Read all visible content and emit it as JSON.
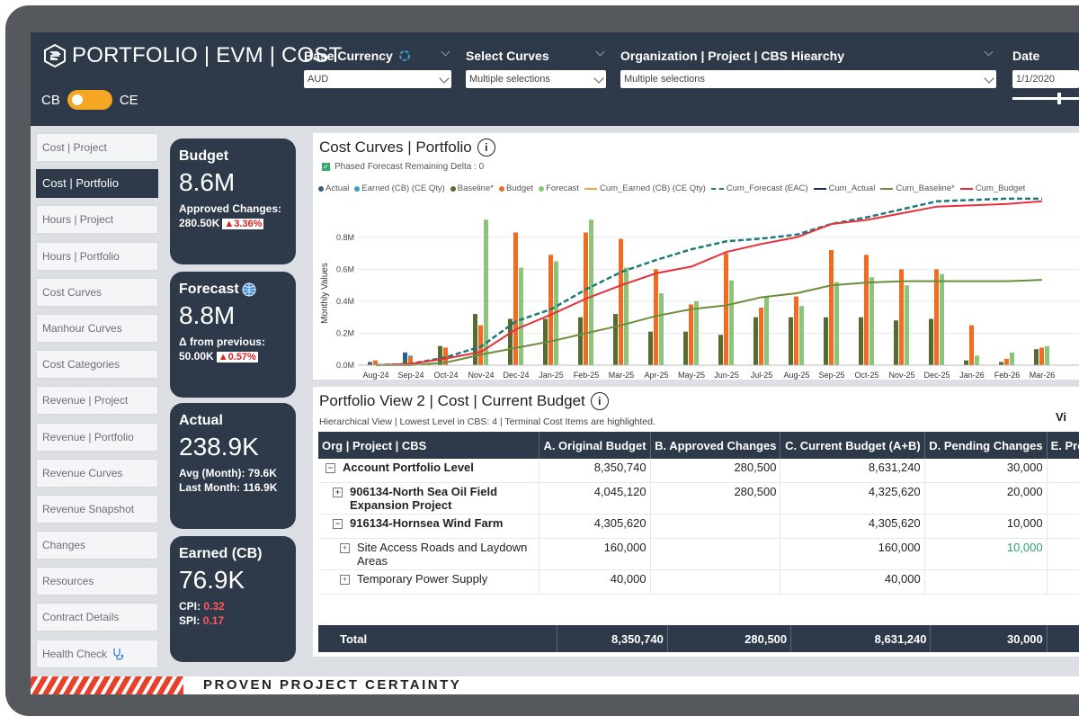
{
  "app": {
    "title": "PORTFOLIO | EVM | COST",
    "toggle_left": "CB",
    "toggle_right": "CE",
    "tagline": "PROVEN PROJECT CERTAINTY"
  },
  "filters": {
    "currency": {
      "label": "Base Currency",
      "value": "AUD"
    },
    "curves": {
      "label": "Select Curves",
      "value": "Multiple selections"
    },
    "org": {
      "label": "Organization | Project | CBS Hiearchy",
      "value": "Multiple selections"
    },
    "date": {
      "label": "Date",
      "value": "1/1/2020"
    }
  },
  "nav": [
    "Cost | Project",
    "Cost | Portfolio",
    "Hours | Project",
    "Hours | Portfolio",
    "Cost Curves",
    "Manhour Curves",
    "Cost Categories",
    "Revenue | Project",
    "Revenue | Portfolio",
    "Revenue Curves",
    "Revenue Snapshot",
    "Changes",
    "Resources",
    "Contract Details",
    "Health Check"
  ],
  "nav_active": "Cost | Portfolio",
  "cards": {
    "budget": {
      "title": "Budget",
      "value": "8.6M",
      "sub_label": "Approved Changes:",
      "sub_value": "280.50K",
      "delta": "▲3.36%"
    },
    "forecast": {
      "title": "Forecast",
      "value": "8.8M",
      "sub_label": "Δ from previous:",
      "sub_value": "50.00K",
      "delta": "▲0.57%"
    },
    "actual": {
      "title": "Actual",
      "value": "238.9K",
      "line1": "Avg (Month): 79.6K",
      "line2": "Last Month: 116.9K"
    },
    "earned": {
      "title": "Earned (CB)",
      "value": "76.9K",
      "cpi_label": "CPI:",
      "cpi": "0.32",
      "spi_label": "SPI:",
      "spi": "0.17"
    }
  },
  "colors": {
    "actual": "#2e5f8a",
    "earned": "#3aa0c8",
    "baseline": "#556b2f",
    "budget": "#f26b21",
    "forecast": "#8cc47a",
    "cum_budget": "#e8303a",
    "cum_forecast": "#1f7a7a",
    "cum_baseline": "#6b8e3a",
    "cum_earned": "#f5a04a",
    "cum_actual": "#1a2a6c"
  },
  "chart_data": {
    "type": "bar",
    "title": "Cost Curves | Portfolio",
    "checkbox_label": "Phased Forecast Remaining Delta : 0",
    "ylabel": "Monthly Values",
    "xlabel": "",
    "ylim": [
      0,
      0.9
    ],
    "yticks": [
      "0.0M",
      "0.2M",
      "0.4M",
      "0.6M",
      "0.8M"
    ],
    "categories": [
      "Aug-24",
      "Sep-24",
      "Oct-24",
      "Nov-24",
      "Dec-24",
      "Jan-25",
      "Feb-25",
      "Mar-25",
      "Apr-25",
      "May-25",
      "Jun-25",
      "Jul-25",
      "Aug-25",
      "Sep-25",
      "Oct-25",
      "Nov-25",
      "Dec-25",
      "Jan-26",
      "Feb-26",
      "Mar-26"
    ],
    "legend": [
      "Actual",
      "Earned (CB) (CE Qty)",
      "Baseline*",
      "Budget",
      "Forecast",
      "Cum_Earned (CB) (CE Qty)",
      "Cum_Forecast (EAC)",
      "Cum_Actual",
      "Cum_Baseline*",
      "Cum_Budget"
    ],
    "series": [
      {
        "name": "Actual",
        "values": [
          0.02,
          0.08,
          0.09,
          0.06,
          0,
          0,
          0,
          0,
          0,
          0,
          0,
          0,
          0,
          0,
          0,
          0,
          0,
          0,
          0,
          0
        ]
      },
      {
        "name": "Earned (CB) (CE Qty)",
        "values": [
          0.02,
          0.06,
          0.07,
          0.02,
          0,
          0,
          0,
          0,
          0,
          0,
          0,
          0,
          0,
          0,
          0,
          0,
          0,
          0,
          0,
          0
        ]
      },
      {
        "name": "Baseline*",
        "values": [
          0.01,
          0.03,
          0.12,
          0.32,
          0.29,
          0.29,
          0.3,
          0.32,
          0.21,
          0.21,
          0.19,
          0.3,
          0.3,
          0.3,
          0.3,
          0.28,
          0.29,
          0.03,
          0.02,
          0.1
        ]
      },
      {
        "name": "Budget",
        "values": [
          0.03,
          0.05,
          0.11,
          0.25,
          0.83,
          0.69,
          0.83,
          0.79,
          0.6,
          0.38,
          0.7,
          0.36,
          0.43,
          0.72,
          0.69,
          0.6,
          0.6,
          0.25,
          0.04,
          0.11
        ]
      },
      {
        "name": "Forecast",
        "values": [
          0,
          0,
          0,
          0.91,
          0.61,
          0.65,
          0.91,
          0.61,
          0.45,
          0.4,
          0.53,
          0.43,
          0.37,
          0.52,
          0.55,
          0.5,
          0.57,
          0.06,
          0.08,
          0.12
        ]
      }
    ],
    "cum_series": [
      {
        "name": "Cum_Forecast (EAC)",
        "values": [
          0.0,
          0.01,
          0.06,
          0.14,
          0.33,
          0.42,
          0.57,
          0.7,
          0.79,
          0.87,
          0.93,
          0.95,
          0.98,
          1.06,
          1.11,
          1.17,
          1.23,
          1.24,
          1.25,
          1.25
        ]
      },
      {
        "name": "Cum_Budget",
        "values": [
          0.0,
          0.01,
          0.05,
          0.1,
          0.27,
          0.38,
          0.5,
          0.6,
          0.69,
          0.74,
          0.85,
          0.91,
          0.96,
          1.06,
          1.09,
          1.14,
          1.19,
          1.2,
          1.21,
          1.23
        ]
      },
      {
        "name": "Cum_Baseline*",
        "values": [
          0.0,
          0.0,
          0.02,
          0.08,
          0.13,
          0.18,
          0.24,
          0.3,
          0.37,
          0.42,
          0.45,
          0.51,
          0.54,
          0.6,
          0.62,
          0.63,
          0.63,
          0.63,
          0.63,
          0.64
        ]
      }
    ]
  },
  "table": {
    "title": "Portfolio View 2 | Cost | Current Budget",
    "subtitle": "Hierarchical View | Lowest Level in CBS: 4 | Terminal Cost Items are highlighted.",
    "right_label": "Vi",
    "headers": [
      "Org | Project | CBS",
      "A. Original Budget",
      "B. Approved Changes",
      "C. Current Budget (A+B)",
      "D. Pending Changes",
      "E. Project"
    ],
    "rows": [
      {
        "name": "Account Portfolio Level",
        "a": "8,350,740",
        "b": "280,500",
        "c": "8,631,240",
        "d": "30,000"
      },
      {
        "name": "906134-North Sea Oil Field",
        "name2": "Expansion Project",
        "a": "4,045,120",
        "b": "280,500",
        "c": "4,325,620",
        "d": "20,000"
      },
      {
        "name": "916134-Hornsea Wind Farm",
        "a": "4,305,620",
        "b": "",
        "c": "4,305,620",
        "d": "10,000"
      },
      {
        "name": "Site Access Roads and Laydown",
        "name2": "Areas",
        "a": "160,000",
        "b": "",
        "c": "160,000",
        "d": "10,000"
      },
      {
        "name": "Temporary Power Supply",
        "a": "40,000",
        "b": "",
        "c": "40,000",
        "d": ""
      }
    ],
    "total": {
      "label": "Total",
      "a": "8,350,740",
      "b": "280,500",
      "c": "8,631,240",
      "d": "30,000"
    }
  }
}
